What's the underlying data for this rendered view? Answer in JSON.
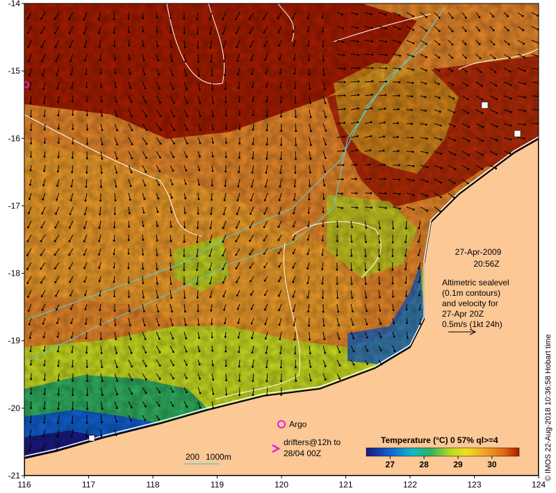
{
  "map": {
    "lat_ticks": [
      "-14",
      "-15",
      "-16",
      "-17",
      "-18",
      "-19",
      "-20",
      "-21"
    ],
    "lon_ticks": [
      "116",
      "117",
      "118",
      "119",
      "120",
      "121",
      "122",
      "123",
      "124"
    ],
    "lon_range": [
      116,
      124
    ],
    "lat_range": [
      -21,
      -14
    ]
  },
  "info": {
    "date": "27-Apr-2009",
    "time": "20:56Z",
    "altimetry_lines": [
      "Altimetric sealevel",
      "(0.1m contours)",
      "and velocity for",
      "27-Apr 20Z",
      "0.5m/s (1kt 24h)"
    ]
  },
  "legend": {
    "argo": "Argo",
    "drifters_line1": "drifters@12h to",
    "drifters_line2": "28/04 00Z",
    "depth_200": "200",
    "depth_1000": "1000m"
  },
  "colorbar": {
    "title": "Temperature (°C) 0 57% ql>=4",
    "ticks": [
      "27",
      "28",
      "29",
      "30"
    ],
    "range": [
      26.3,
      30.8
    ]
  },
  "credit": "© IMOS 22-Aug-2018 10:36:58 Hobart time",
  "colors": {
    "land": "#fcc896",
    "hot": "#a81c00",
    "warm": "#e06a10",
    "mid": "#f0a02a",
    "cool": "#b8d820",
    "cooler": "#30b060",
    "cold": "#1060d0",
    "coldest": "#1a1a80",
    "argo": "#e020e0",
    "contour": "#ffffff",
    "isobath": "#60c8c8"
  }
}
